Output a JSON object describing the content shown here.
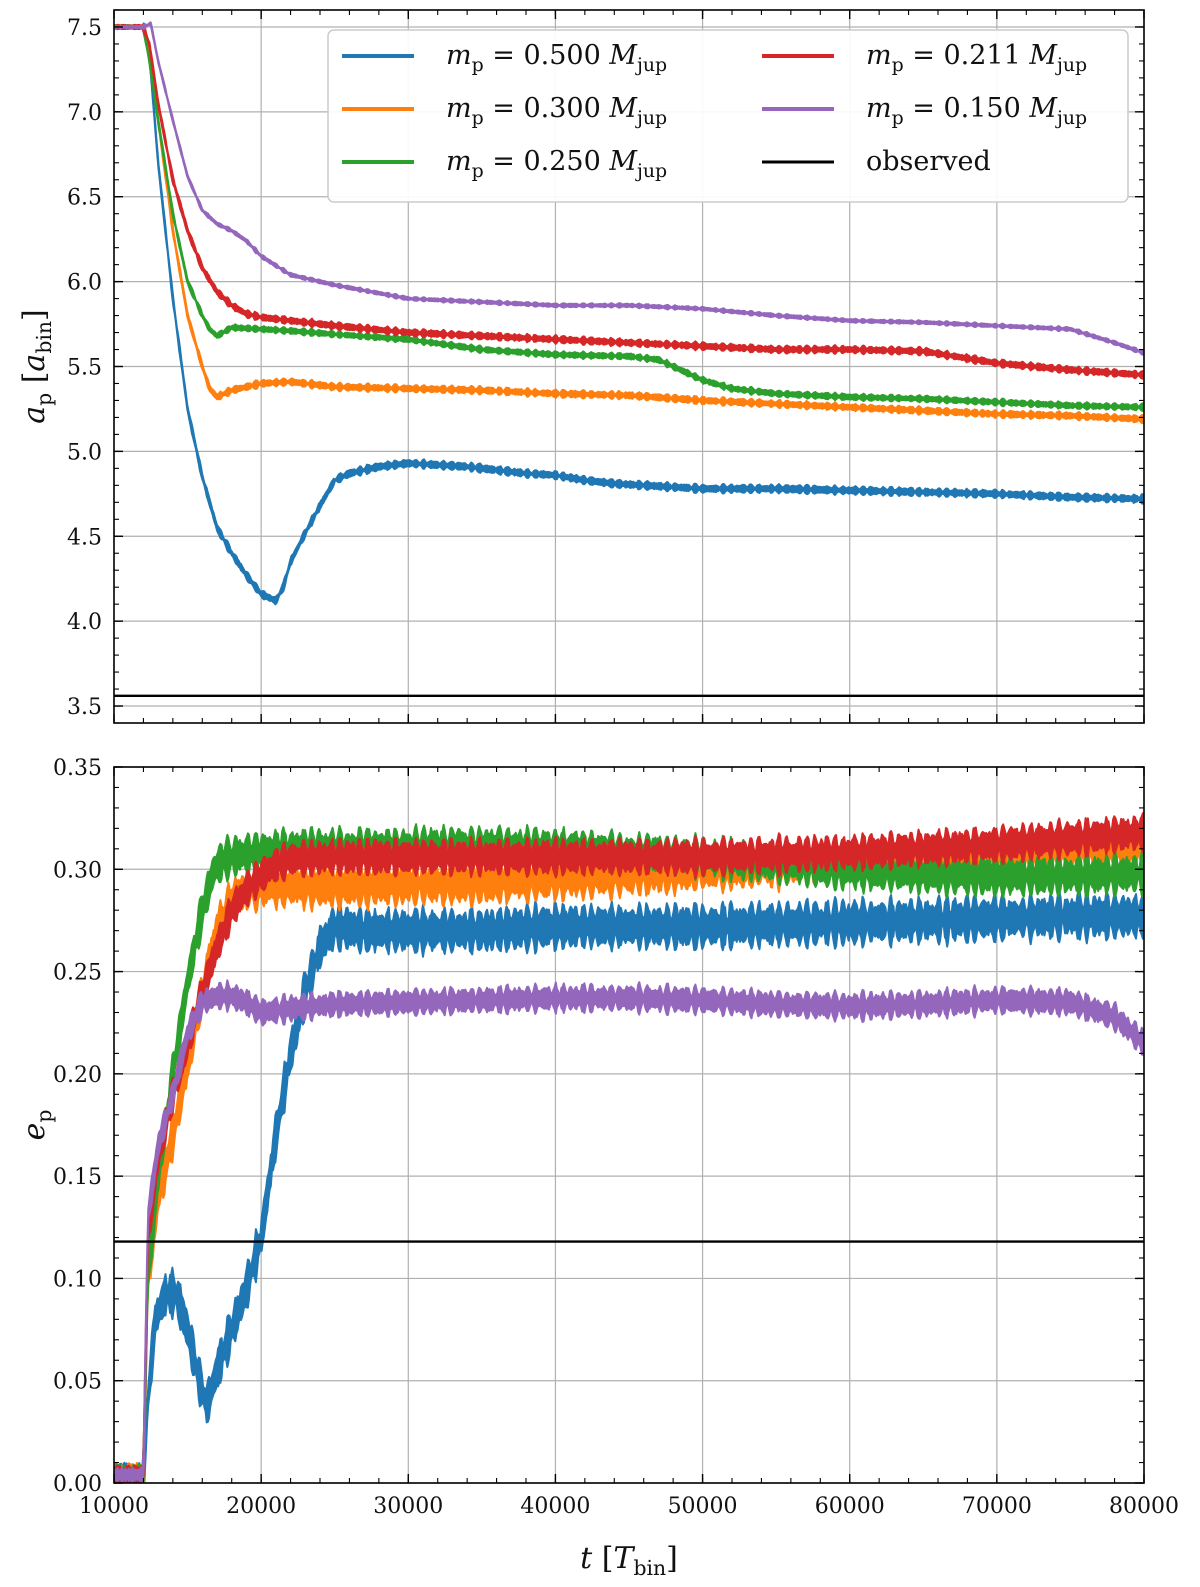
{
  "chart_data": [
    {
      "type": "line",
      "ylabel": "a_p [a_bin]",
      "ylabel_main": "a",
      "ylabel_sub": "p",
      "ylabel_unit_main": "a",
      "ylabel_unit_sub": "bin",
      "xlim": [
        10000,
        80000
      ],
      "ylim": [
        3.4,
        7.6
      ],
      "yticks": [
        "3.5",
        "4.0",
        "4.5",
        "5.0",
        "5.5",
        "6.0",
        "6.5",
        "7.0",
        "7.5"
      ],
      "ytick_values": [
        3.5,
        4.0,
        4.5,
        5.0,
        5.5,
        6.0,
        6.5,
        7.0,
        7.5
      ],
      "grid": true,
      "legend_position": "top-right",
      "observed": 3.56,
      "series": [
        {
          "key": "m050",
          "name": "m_p = 0.500 M_jup",
          "mass": "0.500",
          "color": "#1f77b4",
          "band": 0.045,
          "x": [
            10000,
            12000,
            12400,
            13000,
            14000,
            15000,
            16000,
            17000,
            18000,
            19000,
            20000,
            20500,
            21000,
            21500,
            22000,
            23000,
            24000,
            25000,
            26000,
            27000,
            28000,
            29000,
            30000,
            32000,
            34000,
            36000,
            38000,
            40000,
            42000,
            44000,
            46000,
            48000,
            50000,
            55000,
            60000,
            65000,
            70000,
            75000,
            80000
          ],
          "y": [
            7.5,
            7.5,
            7.35,
            6.7,
            5.9,
            5.25,
            4.85,
            4.55,
            4.4,
            4.27,
            4.16,
            4.14,
            4.12,
            4.2,
            4.35,
            4.52,
            4.68,
            4.83,
            4.87,
            4.89,
            4.91,
            4.92,
            4.93,
            4.92,
            4.91,
            4.89,
            4.87,
            4.86,
            4.83,
            4.81,
            4.8,
            4.79,
            4.78,
            4.78,
            4.77,
            4.76,
            4.75,
            4.73,
            4.72
          ]
        },
        {
          "key": "m030",
          "name": "m_p = 0.300 M_jup",
          "mass": "0.300",
          "color": "#ff7f0e",
          "band": 0.04,
          "x": [
            10000,
            12000,
            12400,
            13000,
            14000,
            15000,
            16000,
            16500,
            17000,
            18000,
            20000,
            22000,
            25000,
            30000,
            35000,
            40000,
            45000,
            50000,
            55000,
            60000,
            65000,
            70000,
            75000,
            80000
          ],
          "y": [
            7.5,
            7.5,
            7.35,
            6.95,
            6.3,
            5.8,
            5.5,
            5.37,
            5.32,
            5.36,
            5.4,
            5.41,
            5.38,
            5.37,
            5.36,
            5.34,
            5.33,
            5.3,
            5.28,
            5.26,
            5.24,
            5.22,
            5.21,
            5.19
          ]
        },
        {
          "key": "m025",
          "name": "m_p = 0.250 M_jup",
          "mass": "0.250",
          "color": "#2ca02c",
          "band": 0.035,
          "x": [
            10000,
            12000,
            12400,
            13000,
            14000,
            15000,
            16000,
            16500,
            17000,
            18000,
            20000,
            22000,
            25000,
            30000,
            35000,
            40000,
            45000,
            47000,
            50000,
            52000,
            55000,
            60000,
            65000,
            70000,
            75000,
            80000
          ],
          "y": [
            7.5,
            7.5,
            7.3,
            6.95,
            6.4,
            6.0,
            5.8,
            5.72,
            5.68,
            5.73,
            5.72,
            5.71,
            5.69,
            5.66,
            5.6,
            5.57,
            5.56,
            5.54,
            5.42,
            5.37,
            5.34,
            5.32,
            5.31,
            5.29,
            5.27,
            5.26
          ]
        },
        {
          "key": "m0211",
          "name": "m_p = 0.211 M_jup",
          "mass": "0.211",
          "color": "#d62728",
          "band": 0.04,
          "x": [
            10000,
            12000,
            12400,
            13000,
            14000,
            15000,
            16000,
            17000,
            18000,
            19000,
            20000,
            22000,
            25000,
            30000,
            35000,
            40000,
            45000,
            50000,
            55000,
            60000,
            65000,
            70000,
            75000,
            80000
          ],
          "y": [
            7.5,
            7.5,
            7.4,
            7.05,
            6.6,
            6.3,
            6.08,
            5.94,
            5.86,
            5.81,
            5.79,
            5.77,
            5.74,
            5.7,
            5.68,
            5.66,
            5.64,
            5.62,
            5.6,
            5.6,
            5.59,
            5.52,
            5.48,
            5.45
          ]
        },
        {
          "key": "m015",
          "name": "m_p = 0.150 M_jup",
          "mass": "0.150",
          "color": "#9467bd",
          "band": 0.022,
          "x": [
            10000,
            12000,
            12500,
            13000,
            14000,
            15000,
            16000,
            17000,
            18000,
            19000,
            20000,
            22000,
            25000,
            30000,
            35000,
            40000,
            45000,
            50000,
            55000,
            60000,
            65000,
            70000,
            75000,
            78000,
            80000
          ],
          "y": [
            7.5,
            7.5,
            7.52,
            7.3,
            6.95,
            6.62,
            6.42,
            6.34,
            6.3,
            6.24,
            6.15,
            6.04,
            5.98,
            5.9,
            5.88,
            5.86,
            5.86,
            5.84,
            5.8,
            5.77,
            5.76,
            5.74,
            5.72,
            5.64,
            5.58
          ]
        }
      ]
    },
    {
      "type": "line",
      "ylabel": "e_p",
      "ylabel_main": "e",
      "ylabel_sub": "p",
      "xlabel": "t [T_bin]",
      "xlabel_main": "t",
      "xlabel_unit_main": "T",
      "xlabel_unit_sub": "bin",
      "xlim": [
        10000,
        80000
      ],
      "ylim": [
        0.0,
        0.35
      ],
      "xticks": [
        "10000",
        "20000",
        "30000",
        "40000",
        "50000",
        "60000",
        "70000",
        "80000"
      ],
      "xtick_values": [
        10000,
        20000,
        30000,
        40000,
        50000,
        60000,
        70000,
        80000
      ],
      "yticks": [
        "0.00",
        "0.05",
        "0.10",
        "0.15",
        "0.20",
        "0.25",
        "0.30",
        "0.35"
      ],
      "ytick_values": [
        0.0,
        0.05,
        0.1,
        0.15,
        0.2,
        0.25,
        0.3,
        0.35
      ],
      "grid": true,
      "observed": 0.118,
      "series": [
        {
          "key": "m050",
          "color": "#1f77b4",
          "band": 0.02,
          "x": [
            10000,
            12000,
            12300,
            12800,
            13500,
            14200,
            15000,
            15800,
            16300,
            17000,
            18000,
            19000,
            20000,
            21000,
            22000,
            23000,
            24000,
            25000,
            27000,
            30000,
            35000,
            40000,
            45000,
            50000,
            55000,
            60000,
            65000,
            70000,
            75000,
            80000
          ],
          "y": [
            0.004,
            0.004,
            0.04,
            0.08,
            0.092,
            0.093,
            0.075,
            0.05,
            0.038,
            0.055,
            0.075,
            0.095,
            0.12,
            0.17,
            0.21,
            0.24,
            0.262,
            0.272,
            0.27,
            0.27,
            0.27,
            0.272,
            0.272,
            0.272,
            0.273,
            0.274,
            0.275,
            0.276,
            0.277,
            0.277
          ]
        },
        {
          "key": "m030",
          "color": "#ff7f0e",
          "band": 0.02,
          "x": [
            10000,
            12000,
            12300,
            13000,
            14000,
            15000,
            16000,
            17000,
            18000,
            19000,
            20000,
            22000,
            25000,
            30000,
            35000,
            40000,
            45000,
            50000,
            55000,
            60000,
            65000,
            70000,
            75000,
            80000
          ],
          "y": [
            0.004,
            0.004,
            0.1,
            0.14,
            0.17,
            0.205,
            0.24,
            0.27,
            0.285,
            0.29,
            0.292,
            0.292,
            0.292,
            0.293,
            0.294,
            0.296,
            0.298,
            0.3,
            0.302,
            0.304,
            0.306,
            0.308,
            0.31,
            0.31
          ]
        },
        {
          "key": "m025",
          "color": "#2ca02c",
          "band": 0.018,
          "x": [
            10000,
            12000,
            12300,
            13000,
            14000,
            15000,
            16000,
            16800,
            17500,
            18500,
            20000,
            22000,
            25000,
            30000,
            35000,
            40000,
            45000,
            50000,
            55000,
            60000,
            65000,
            70000,
            75000,
            80000
          ],
          "y": [
            0.004,
            0.004,
            0.1,
            0.15,
            0.2,
            0.245,
            0.28,
            0.3,
            0.305,
            0.307,
            0.308,
            0.31,
            0.31,
            0.311,
            0.311,
            0.31,
            0.308,
            0.306,
            0.303,
            0.3,
            0.298,
            0.297,
            0.297,
            0.298
          ]
        },
        {
          "key": "m0211",
          "color": "#d62728",
          "band": 0.016,
          "x": [
            10000,
            12000,
            12300,
            13000,
            14000,
            15000,
            16000,
            17000,
            18000,
            19000,
            20000,
            21000,
            22000,
            25000,
            30000,
            35000,
            40000,
            45000,
            50000,
            55000,
            60000,
            65000,
            70000,
            75000,
            80000
          ],
          "y": [
            0.004,
            0.004,
            0.12,
            0.16,
            0.19,
            0.215,
            0.24,
            0.262,
            0.28,
            0.29,
            0.297,
            0.302,
            0.305,
            0.306,
            0.306,
            0.306,
            0.306,
            0.306,
            0.306,
            0.307,
            0.308,
            0.31,
            0.312,
            0.315,
            0.318
          ]
        },
        {
          "key": "m015",
          "color": "#9467bd",
          "band": 0.012,
          "x": [
            10000,
            12000,
            12300,
            13000,
            14000,
            15000,
            16000,
            17000,
            18000,
            19000,
            20000,
            22000,
            25000,
            30000,
            35000,
            40000,
            45000,
            50000,
            55000,
            60000,
            65000,
            70000,
            75000,
            78000,
            80000
          ],
          "y": [
            0.004,
            0.004,
            0.13,
            0.165,
            0.19,
            0.22,
            0.235,
            0.238,
            0.238,
            0.235,
            0.23,
            0.232,
            0.234,
            0.235,
            0.236,
            0.237,
            0.237,
            0.236,
            0.234,
            0.233,
            0.234,
            0.236,
            0.235,
            0.228,
            0.215
          ]
        }
      ]
    }
  ],
  "legend": {
    "observed_label": "observed",
    "mass_prefix_main": "m",
    "mass_prefix_sub": "p",
    "mass_unit_main": "M",
    "mass_unit_sub": "jup"
  }
}
